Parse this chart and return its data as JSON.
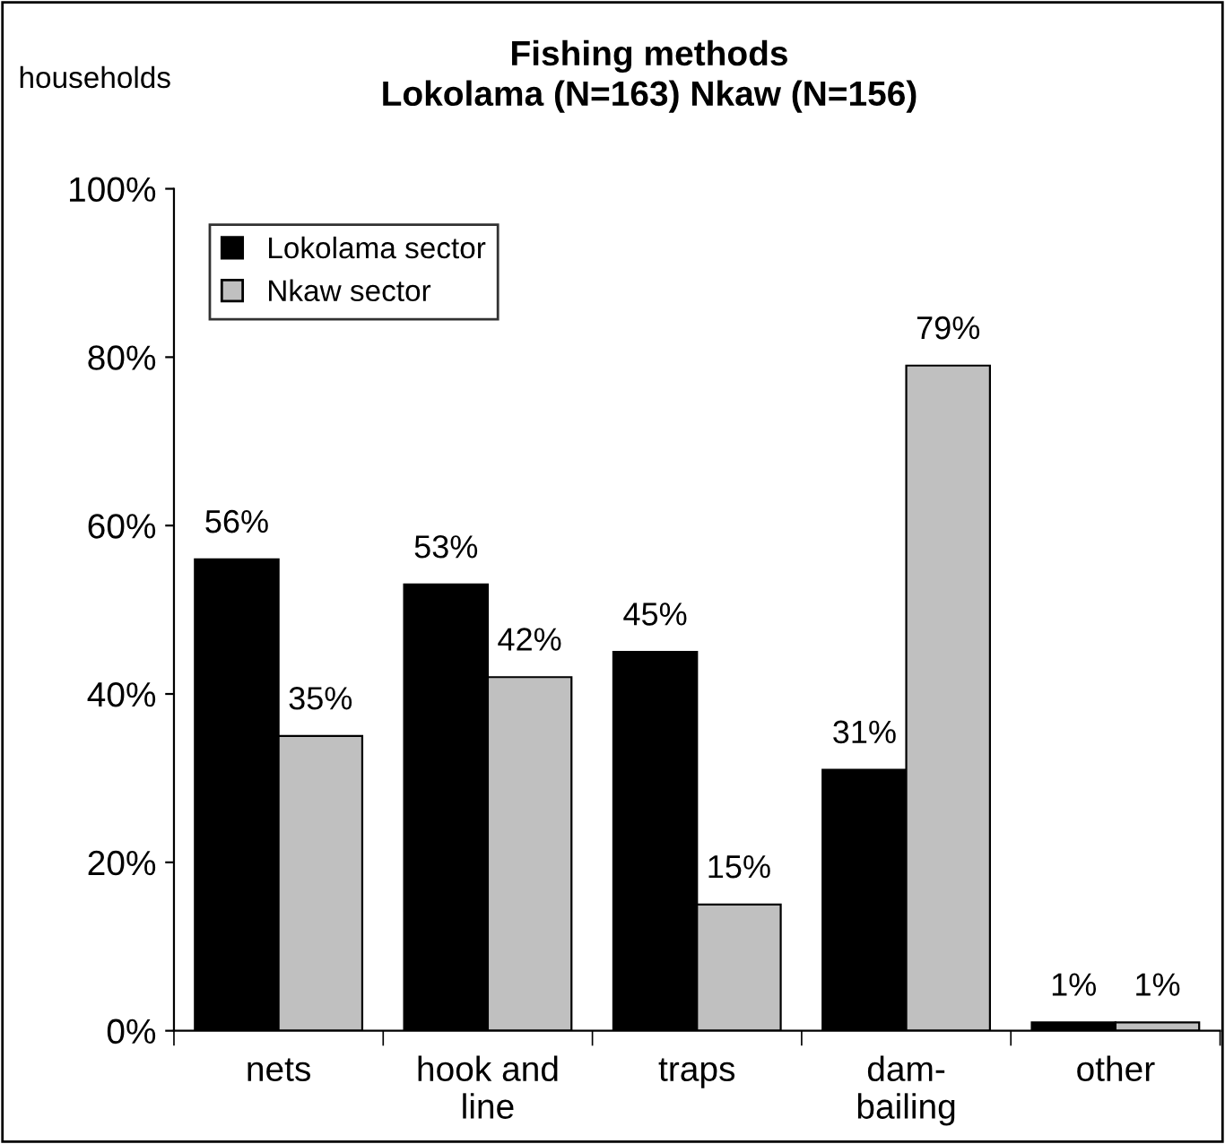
{
  "chart_data": {
    "type": "bar",
    "title": "Fishing methods\nLokolama (N=163) Nkaw (N=156)",
    "ylabel": "households",
    "categories": [
      "nets",
      "hook and\nline",
      "traps",
      "dam-\nbailing",
      "other"
    ],
    "series": [
      {
        "name": "Lokolama sector",
        "color": "#000000",
        "values": [
          56,
          53,
          45,
          31,
          1
        ],
        "value_labels": [
          "56%",
          "53%",
          "45%",
          "31%",
          "1%"
        ]
      },
      {
        "name": "Nkaw sector",
        "color": "#c0c0c0",
        "values": [
          35,
          42,
          15,
          79,
          1
        ],
        "value_labels": [
          "35%",
          "42%",
          "15%",
          "79%",
          "1%"
        ]
      }
    ],
    "ylim": [
      0,
      100
    ],
    "yticks": [
      {
        "value": 0,
        "label": "0%"
      },
      {
        "value": 20,
        "label": "20%"
      },
      {
        "value": 40,
        "label": "40%"
      },
      {
        "value": 60,
        "label": "60%"
      },
      {
        "value": 80,
        "label": "80%"
      },
      {
        "value": 100,
        "label": "100%"
      }
    ],
    "grid": false,
    "legend": "top left"
  }
}
